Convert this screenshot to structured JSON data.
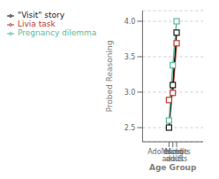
{
  "chart_data": {
    "type": "line",
    "categories": [
      "Adolescents",
      "Young adults",
      "Middle adults"
    ],
    "series": [
      {
        "name": "Livia task",
        "color": "#c0392b",
        "marker": "s",
        "values": [
          2.89,
          2.99,
          3.69
        ]
      },
      {
        "name": "\"Visit\" story",
        "color": "#1a1a1a",
        "marker": "s",
        "values": [
          2.5,
          3.1,
          3.84
        ]
      },
      {
        "name": "Pregnancy dilemma",
        "color": "#5bb89a",
        "marker": "s",
        "values": [
          2.6,
          3.38,
          4.0
        ]
      }
    ],
    "xlabel": "Age Group",
    "ylabel": "Probed Reasoning",
    "ylim": [
      2.3,
      4.15
    ],
    "yticks": [
      2.5,
      {
        "value": 3,
        "label": "3.0"
      },
      3.5,
      {
        "value": 4,
        "label": "4.0"
      }
    ],
    "grid": true,
    "legend": "upper left"
  }
}
